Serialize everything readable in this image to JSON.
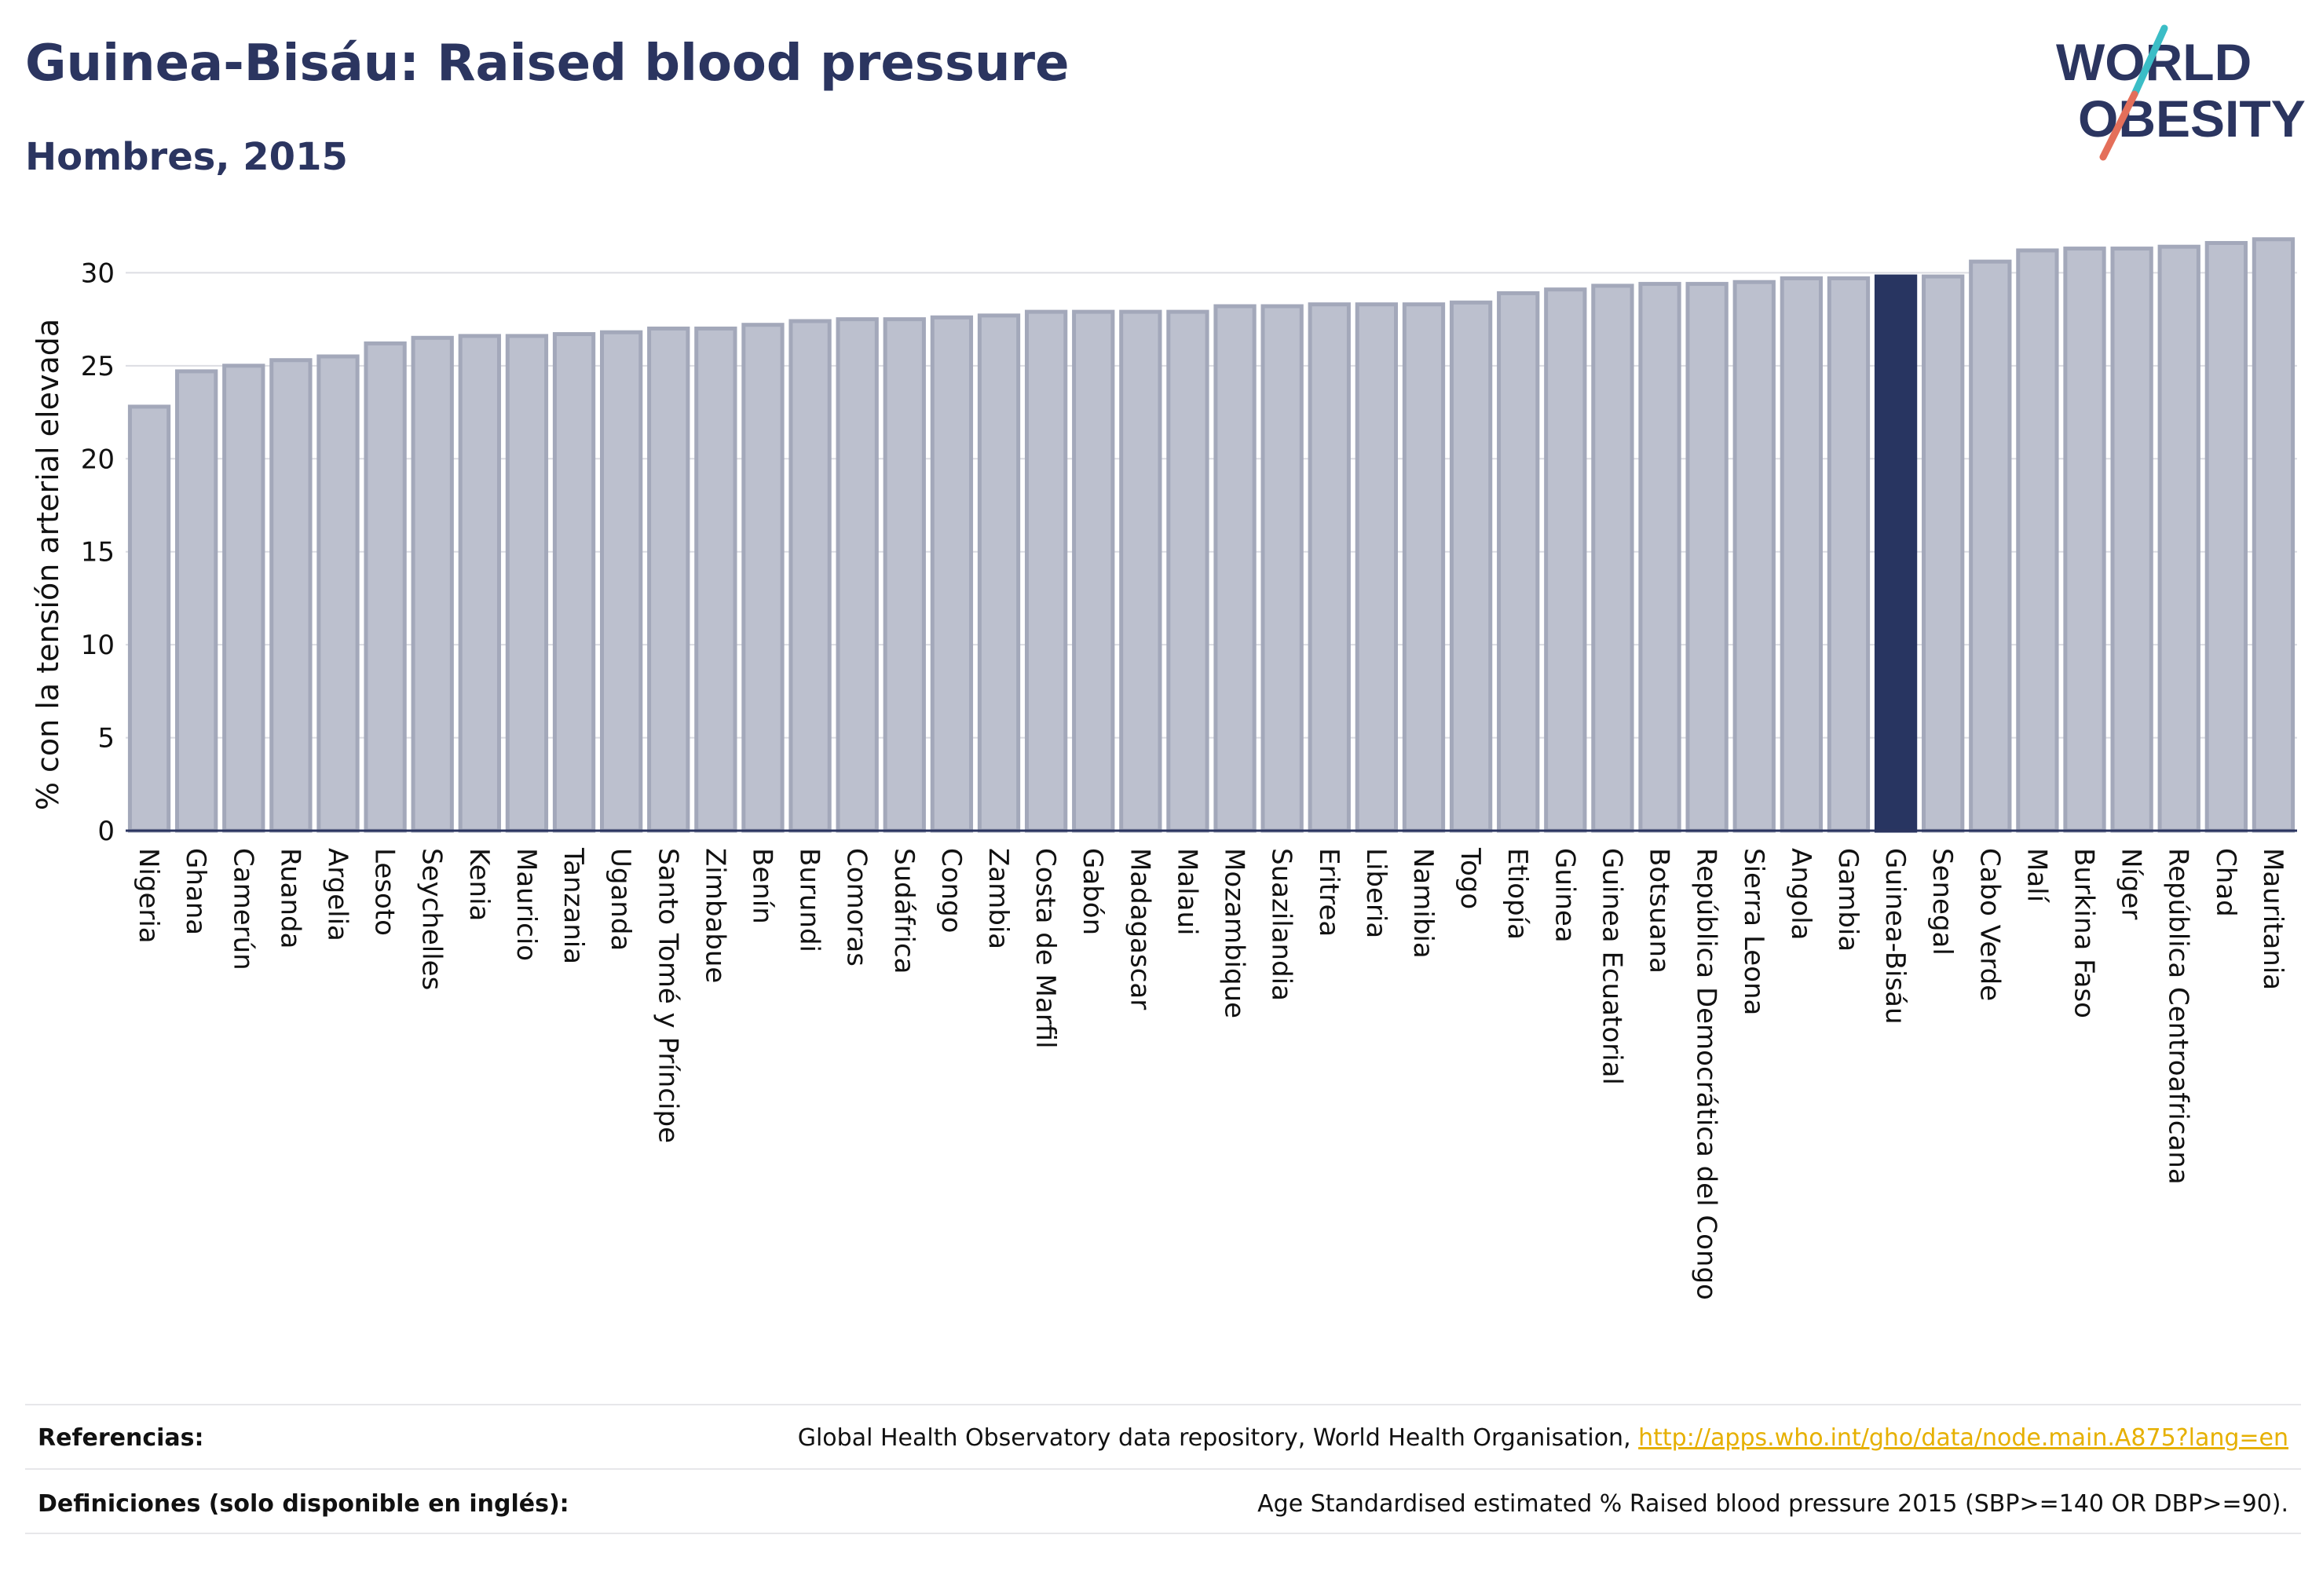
{
  "header": {
    "title": "Guinea-Bisáu: Raised blood pressure",
    "subtitle": "Hombres, 2015"
  },
  "logo": {
    "line1": "WORLD",
    "line2": "OBESITY",
    "colors": {
      "text": "#2b3560",
      "slash_teal": "#3bbdc6",
      "slash_coral": "#e46f5a"
    }
  },
  "colors": {
    "bar": "#bcc0ce",
    "bar_edge": "#a3a8ba",
    "highlight": "#283561",
    "grid": "#dcdde3",
    "axis": "#2b3560"
  },
  "chart_data": {
    "type": "bar",
    "ylabel": "% con la tensión arterial elevada",
    "ylim": [
      0,
      32
    ],
    "yticks": [
      0,
      5,
      10,
      15,
      20,
      25,
      30
    ],
    "grid": true,
    "highlight": "Guinea-Bisáu",
    "categories": [
      "Nigeria",
      "Ghana",
      "Camerún",
      "Ruanda",
      "Argelia",
      "Lesoto",
      "Seychelles",
      "Kenia",
      "Mauricio",
      "Tanzania",
      "Uganda",
      "Santo Tomé y Príncipe",
      "Zimbabue",
      "Benín",
      "Burundi",
      "Comoras",
      "Sudáfrica",
      "Congo",
      "Zambia",
      "Costa de Marfil",
      "Gabón",
      "Madagascar",
      "Malaui",
      "Mozambique",
      "Suazilandia",
      "Eritrea",
      "Liberia",
      "Namibia",
      "Togo",
      "Etiopía",
      "Guinea",
      "Guinea Ecuatorial",
      "Botsuana",
      "República Democrática del Congo",
      "Sierra Leona",
      "Angola",
      "Gambia",
      "Guinea-Bisáu",
      "Senegal",
      "Cabo Verde",
      "Malí",
      "Burkina Faso",
      "Níger",
      "República Centroafricana",
      "Chad",
      "Mauritania"
    ],
    "values": [
      22.8,
      24.7,
      25.0,
      25.3,
      25.5,
      26.2,
      26.5,
      26.6,
      26.6,
      26.7,
      26.8,
      27.0,
      27.0,
      27.2,
      27.4,
      27.5,
      27.5,
      27.6,
      27.7,
      27.9,
      27.9,
      27.9,
      27.9,
      28.2,
      28.2,
      28.3,
      28.3,
      28.3,
      28.4,
      28.9,
      29.1,
      29.3,
      29.4,
      29.4,
      29.5,
      29.7,
      29.7,
      29.8,
      29.8,
      30.6,
      31.2,
      31.3,
      31.3,
      31.4,
      31.6,
      31.8
    ]
  },
  "footer": {
    "references_label": "Referencias:",
    "references_text": "Global Health Observatory data repository, World Health Organisation, ",
    "references_link": "http://apps.who.int/gho/data/node.main.A875?lang=en",
    "definitions_label": "Definiciones (solo disponible en inglés):",
    "definitions_text": "Age Standardised estimated % Raised blood pressure 2015 (SBP>=140 OR DBP>=90)."
  }
}
